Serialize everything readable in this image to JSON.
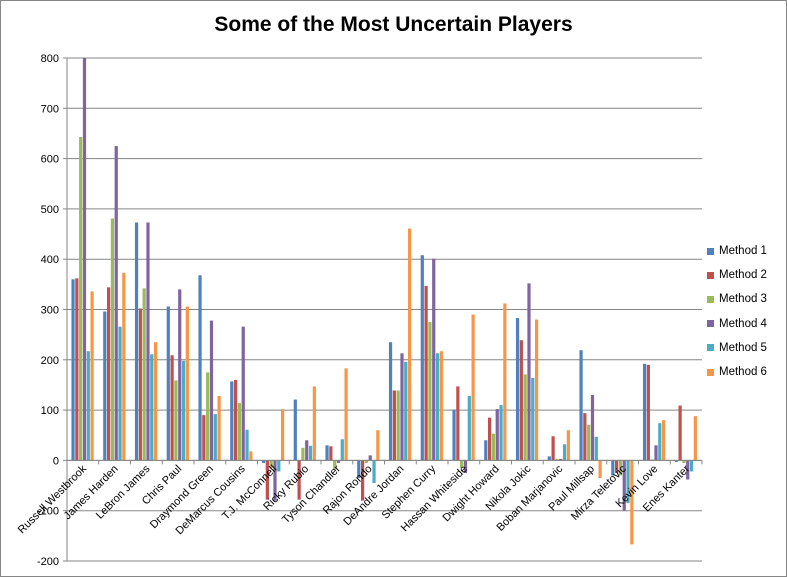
{
  "chart_data": {
    "type": "bar",
    "title": "Some of the Most Uncertain Players",
    "xlabel": "",
    "ylabel": "",
    "ylim": [
      -200,
      800
    ],
    "yticks": [
      -200,
      -100,
      0,
      100,
      200,
      300,
      400,
      500,
      600,
      700,
      800
    ],
    "grid": "horizontal",
    "legend_position": "right",
    "categories": [
      "Russell Westbrook",
      "James Harden",
      "LeBron James",
      "Chris Paul",
      "Draymond Green",
      "DeMarcus Cousins",
      "T.J. McConnell",
      "Ricky Rubio",
      "Tyson Chandler",
      "Rajon Rondo",
      "DeAndre Jordan",
      "Stephen Curry",
      "Hassan Whiteside",
      "Dwight Howard",
      "Nikola Jokic",
      "Boban Marjanovic",
      "Paul Millsap",
      "Mirza Teletovic",
      "Kevin Love",
      "Enes Kanter"
    ],
    "series": [
      {
        "name": "Method 1",
        "color": "#4F81BD",
        "values": [
          360,
          296,
          473,
          306,
          368,
          157,
          -5,
          121,
          30,
          -35,
          235,
          408,
          101,
          40,
          283,
          8,
          219,
          -30,
          192,
          -3
        ]
      },
      {
        "name": "Method 2",
        "color": "#C0504D",
        "values": [
          362,
          344,
          302,
          209,
          90,
          160,
          -78,
          -78,
          28,
          -80,
          139,
          347,
          147,
          85,
          239,
          48,
          94,
          -25,
          190,
          109
        ]
      },
      {
        "name": "Method 3",
        "color": "#9BBB59",
        "values": [
          643,
          481,
          342,
          159,
          175,
          114,
          -15,
          25,
          -18,
          -5,
          139,
          275,
          -15,
          53,
          171,
          3,
          71,
          -30,
          2,
          -5
        ]
      },
      {
        "name": "Method 4",
        "color": "#8064A2",
        "values": [
          800,
          625,
          473,
          340,
          278,
          266,
          -80,
          40,
          -5,
          10,
          213,
          401,
          -25,
          102,
          352,
          3,
          130,
          -100,
          30,
          -38
        ]
      },
      {
        "name": "Method 5",
        "color": "#4BACC6",
        "values": [
          217,
          266,
          211,
          198,
          92,
          61,
          -22,
          29,
          42,
          -45,
          196,
          213,
          128,
          110,
          164,
          32,
          47,
          -85,
          74,
          -22
        ]
      },
      {
        "name": "Method 6",
        "color": "#F79646",
        "values": [
          336,
          373,
          235,
          306,
          128,
          18,
          102,
          147,
          183,
          60,
          461,
          217,
          290,
          312,
          280,
          60,
          -35,
          -167,
          80,
          88
        ]
      }
    ]
  }
}
